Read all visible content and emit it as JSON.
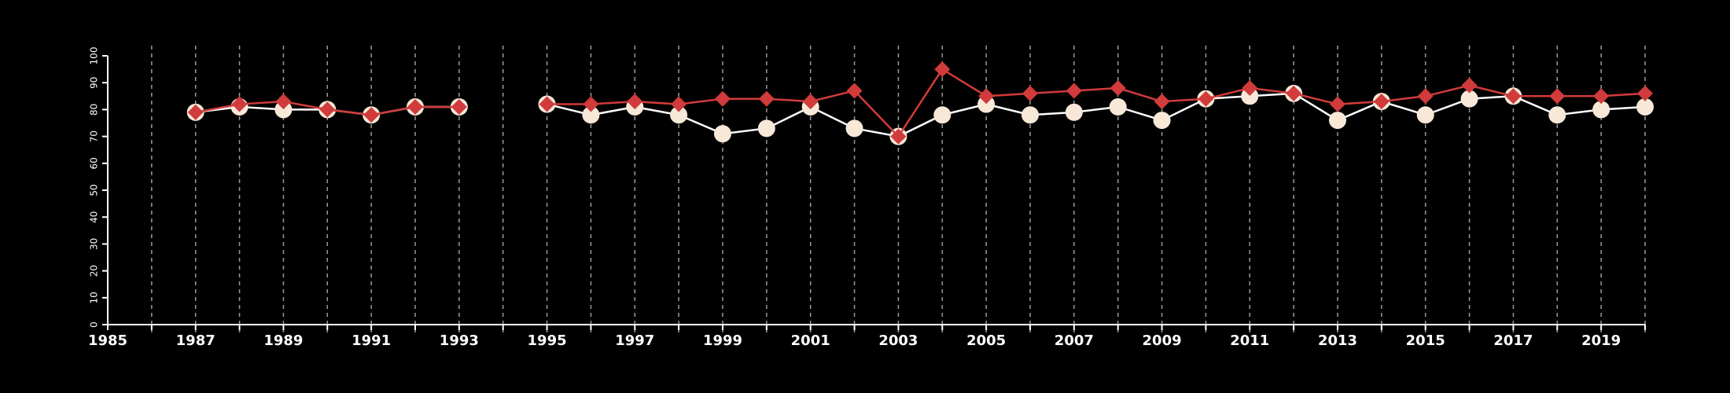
{
  "chart_data": {
    "type": "line",
    "title": "",
    "xlabel": "",
    "ylabel": "",
    "xlim": [
      1985,
      2020
    ],
    "ylim": [
      0,
      100
    ],
    "xticks": [
      1985,
      1987,
      1989,
      1991,
      1993,
      1995,
      1997,
      1999,
      2001,
      2003,
      2005,
      2007,
      2009,
      2011,
      2013,
      2015,
      2017,
      2019
    ],
    "yticks": [
      0,
      10,
      20,
      30,
      40,
      50,
      60,
      70,
      80,
      90,
      100
    ],
    "grid": "vertical dashed lines at every year",
    "legend": "none",
    "x": [
      1987,
      1988,
      1989,
      1990,
      1991,
      1992,
      1993,
      1994,
      1995,
      1996,
      1997,
      1998,
      1999,
      2000,
      2001,
      2002,
      2003,
      2004,
      2005,
      2006,
      2007,
      2008,
      2009,
      2010,
      2011,
      2012,
      2013,
      2014,
      2015,
      2016,
      2017,
      2018,
      2019,
      2020
    ],
    "series": [
      {
        "marker": "circle",
        "color": "#f7e8d8",
        "line_color": "#ffffff",
        "values": [
          79,
          81,
          80,
          80,
          78,
          81,
          81,
          null,
          82,
          78,
          81,
          78,
          71,
          73,
          81,
          73,
          70,
          78,
          82,
          78,
          79,
          81,
          76,
          84,
          85,
          86,
          76,
          83,
          78,
          84,
          85,
          78,
          80,
          81
        ]
      },
      {
        "marker": "diamond",
        "color": "#d13b3b",
        "line_color": "#d13b3b",
        "values": [
          79,
          82,
          83,
          80,
          78,
          81,
          81,
          null,
          82,
          82,
          83,
          82,
          84,
          84,
          83,
          87,
          70,
          95,
          85,
          86,
          87,
          88,
          83,
          84,
          88,
          86,
          82,
          83,
          85,
          89,
          85,
          85,
          85,
          86
        ]
      }
    ]
  },
  "colors": {
    "background": "#000000",
    "axis": "#ffffff",
    "grid": "#9a9a9a"
  }
}
